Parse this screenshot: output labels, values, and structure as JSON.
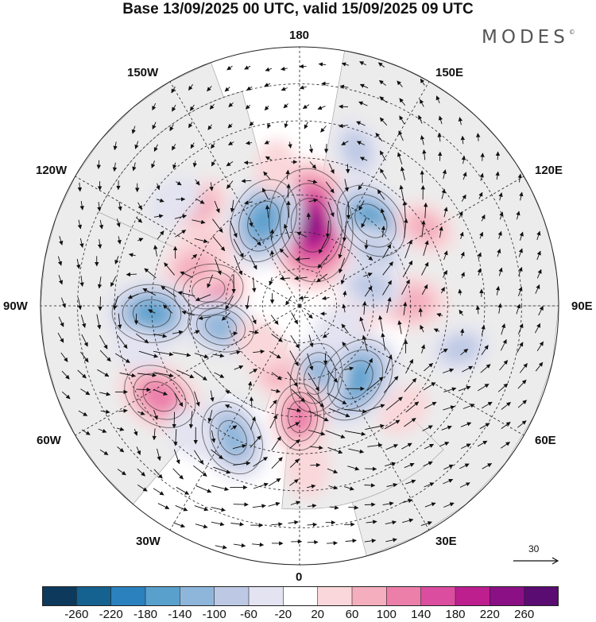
{
  "title": "Base 13/09/2025 00 UTC, valid 15/09/2025 09 UTC",
  "brand": "MODES",
  "brand_mark": "©",
  "longitude_labels": [
    "180",
    "150E",
    "120E",
    "90E",
    "60E",
    "30E",
    "0",
    "30W",
    "60W",
    "90W",
    "120W",
    "150W"
  ],
  "wind_reference": {
    "value": "30"
  },
  "colorbar": {
    "ticks": [
      "-260",
      "-220",
      "-180",
      "-140",
      "-100",
      "-60",
      "-20",
      "20",
      "60",
      "100",
      "140",
      "180",
      "220",
      "260"
    ],
    "colors": [
      "#0d3a5c",
      "#15618f",
      "#2b81bd",
      "#5aa0cd",
      "#8eb6da",
      "#bdc9e4",
      "#e3e3f1",
      "#ffffff",
      "#fad7da",
      "#f4aebd",
      "#ec7eaa",
      "#db4d9f",
      "#bd1f8f",
      "#8b0f85",
      "#5b0c72"
    ]
  },
  "anomalies": [
    {
      "id": "a1",
      "v": 250,
      "lon": 172,
      "colat": 22
    },
    {
      "id": "a2",
      "v": -160,
      "lon": -157,
      "colat": 25
    },
    {
      "id": "a3",
      "v": -140,
      "lon": 140,
      "colat": 30
    },
    {
      "id": "a4",
      "v": 60,
      "lon": 122,
      "colat": 40
    },
    {
      "id": "a5",
      "v": -60,
      "lon": 125,
      "colat": 25
    },
    {
      "id": "a6",
      "v": 80,
      "lon": -118,
      "colat": 30
    },
    {
      "id": "a7",
      "v": 60,
      "lon": -135,
      "colat": 38
    },
    {
      "id": "a8",
      "v": 110,
      "lon": -100,
      "colat": 25
    },
    {
      "id": "a9",
      "v": 80,
      "lon": -110,
      "colat": 30
    },
    {
      "id": "a10",
      "v": -140,
      "lon": -87,
      "colat": 40
    },
    {
      "id": "a11",
      "v": -100,
      "lon": -75,
      "colat": 22
    },
    {
      "id": "a12",
      "v": 130,
      "lon": -57,
      "colat": 45
    },
    {
      "id": "a13",
      "v": 90,
      "lon": 92,
      "colat": 30
    },
    {
      "id": "a14",
      "v": 40,
      "lon": 80,
      "colat": 15
    },
    {
      "id": "a15",
      "v": -170,
      "lon": 37,
      "colat": 25
    },
    {
      "id": "a16",
      "v": -110,
      "lon": 13,
      "colat": 20
    },
    {
      "id": "a17",
      "v": 70,
      "lon": -22,
      "colat": 18
    },
    {
      "id": "a18",
      "v": 100,
      "lon": 0,
      "colat": 30
    },
    {
      "id": "a19",
      "v": 50,
      "lon": 3,
      "colat": 44
    },
    {
      "id": "a20",
      "v": -130,
      "lon": -27,
      "colat": 40
    },
    {
      "id": "a21",
      "v": -50,
      "lon": -40,
      "colat": 45
    },
    {
      "id": "a22",
      "v": -40,
      "lon": -75,
      "colat": 45
    },
    {
      "id": "a23",
      "v": -60,
      "lon": 75,
      "colat": 45
    },
    {
      "id": "a24",
      "v": 40,
      "lon": 45,
      "colat": 40
    },
    {
      "id": "a25",
      "v": -60,
      "lon": 160,
      "colat": 45
    },
    {
      "id": "a26",
      "v": -70,
      "lon": 105,
      "colat": 20
    },
    {
      "id": "a27",
      "v": 40,
      "lon": -170,
      "colat": 38
    },
    {
      "id": "a28",
      "v": -40,
      "lon": 60,
      "colat": 12
    },
    {
      "id": "a29",
      "v": 50,
      "lon": -45,
      "colat": 15
    },
    {
      "id": "a30",
      "v": -50,
      "lon": -130,
      "colat": 44
    }
  ]
}
